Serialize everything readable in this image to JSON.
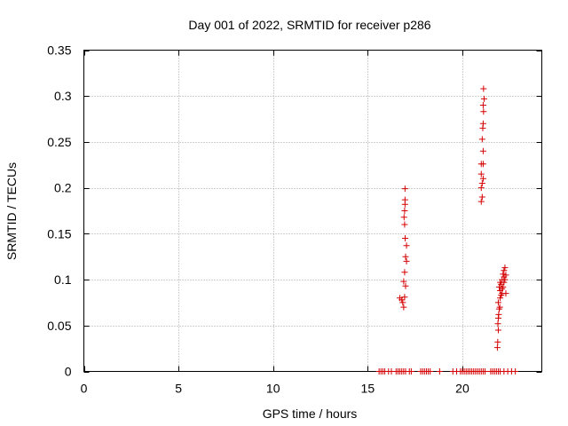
{
  "chart_data": {
    "type": "scatter",
    "title": "Day 001 of 2022, SRMTID for receiver p286",
    "xlabel": "GPS time / hours",
    "ylabel": "SRMTID / TECUs",
    "xlim": [
      0,
      24.2
    ],
    "ylim": [
      0,
      0.35
    ],
    "x_ticks": [
      0,
      5,
      10,
      15,
      20
    ],
    "x_tick_labels": [
      "0",
      "5",
      "10",
      "15",
      "20"
    ],
    "y_ticks": [
      0,
      0.05,
      0.1,
      0.15,
      0.2,
      0.25,
      0.3,
      0.35
    ],
    "y_tick_labels": [
      "0",
      "0.05",
      "0.1",
      "0.15",
      "0.2",
      "0.25",
      "0.3",
      "0.35"
    ],
    "grid": true,
    "legend": "none",
    "marker": "plus",
    "marker_color": "#d40000",
    "series": [
      {
        "points": [
          [
            15.6,
            0
          ],
          [
            15.7,
            0
          ],
          [
            15.8,
            0
          ],
          [
            15.9,
            0
          ],
          [
            16.1,
            0
          ],
          [
            16.25,
            0
          ],
          [
            16.5,
            0
          ],
          [
            16.6,
            0
          ],
          [
            16.7,
            0
          ],
          [
            16.8,
            0
          ],
          [
            16.9,
            0
          ],
          [
            17.0,
            0
          ],
          [
            17.2,
            0
          ],
          [
            17.3,
            0
          ],
          [
            17.8,
            0
          ],
          [
            17.9,
            0
          ],
          [
            18.0,
            0
          ],
          [
            18.1,
            0
          ],
          [
            18.2,
            0
          ],
          [
            18.3,
            0
          ],
          [
            18.8,
            0
          ],
          [
            19.5,
            0
          ],
          [
            19.7,
            0
          ],
          [
            19.9,
            0
          ],
          [
            20.0,
            0
          ],
          [
            20.1,
            0
          ],
          [
            20.2,
            0
          ],
          [
            20.3,
            0
          ],
          [
            20.4,
            0
          ],
          [
            20.5,
            0
          ],
          [
            20.6,
            0
          ],
          [
            20.7,
            0
          ],
          [
            20.8,
            0
          ],
          [
            20.9,
            0
          ],
          [
            21.0,
            0
          ],
          [
            21.1,
            0
          ],
          [
            21.2,
            0
          ],
          [
            21.5,
            0
          ],
          [
            21.6,
            0
          ],
          [
            21.7,
            0
          ],
          [
            21.8,
            0
          ],
          [
            21.9,
            0
          ],
          [
            22.0,
            0
          ],
          [
            22.2,
            0
          ],
          [
            22.4,
            0
          ],
          [
            22.6,
            0
          ],
          [
            22.8,
            0
          ],
          [
            16.7,
            0.08
          ],
          [
            16.8,
            0.078
          ],
          [
            16.85,
            0.075
          ],
          [
            16.9,
            0.07
          ],
          [
            16.95,
            0.081
          ],
          [
            16.9,
            0.098
          ],
          [
            17.0,
            0.093
          ],
          [
            16.95,
            0.108
          ],
          [
            17.05,
            0.12
          ],
          [
            17.0,
            0.125
          ],
          [
            17.05,
            0.137
          ],
          [
            16.98,
            0.145
          ],
          [
            16.95,
            0.16
          ],
          [
            16.92,
            0.168
          ],
          [
            16.95,
            0.175
          ],
          [
            16.97,
            0.182
          ],
          [
            16.97,
            0.187
          ],
          [
            16.97,
            0.199
          ],
          [
            21.0,
            0.185
          ],
          [
            21.05,
            0.19
          ],
          [
            21.0,
            0.2
          ],
          [
            21.05,
            0.205
          ],
          [
            21.1,
            0.21
          ],
          [
            21.0,
            0.215
          ],
          [
            21.0,
            0.226
          ],
          [
            21.1,
            0.226
          ],
          [
            21.1,
            0.24
          ],
          [
            21.05,
            0.253
          ],
          [
            21.08,
            0.265
          ],
          [
            21.1,
            0.27
          ],
          [
            21.12,
            0.283
          ],
          [
            21.1,
            0.29
          ],
          [
            21.15,
            0.297
          ],
          [
            21.12,
            0.308
          ],
          [
            21.85,
            0.026
          ],
          [
            21.87,
            0.032
          ],
          [
            21.9,
            0.045
          ],
          [
            21.88,
            0.052
          ],
          [
            21.9,
            0.058
          ],
          [
            21.92,
            0.062
          ],
          [
            21.95,
            0.068
          ],
          [
            21.98,
            0.07
          ],
          [
            21.9,
            0.075
          ],
          [
            22.0,
            0.08
          ],
          [
            22.05,
            0.083
          ],
          [
            22.1,
            0.085
          ],
          [
            22.0,
            0.088
          ],
          [
            22.1,
            0.09
          ],
          [
            22.15,
            0.092
          ],
          [
            22.05,
            0.095
          ],
          [
            22.2,
            0.097
          ],
          [
            22.1,
            0.1
          ],
          [
            22.2,
            0.103
          ],
          [
            22.15,
            0.106
          ],
          [
            22.25,
            0.1
          ],
          [
            22.0,
            0.097
          ],
          [
            21.95,
            0.092
          ],
          [
            22.3,
            0.085
          ],
          [
            22.2,
            0.11
          ],
          [
            22.25,
            0.113
          ],
          [
            22.3,
            0.105
          ]
        ]
      }
    ]
  }
}
